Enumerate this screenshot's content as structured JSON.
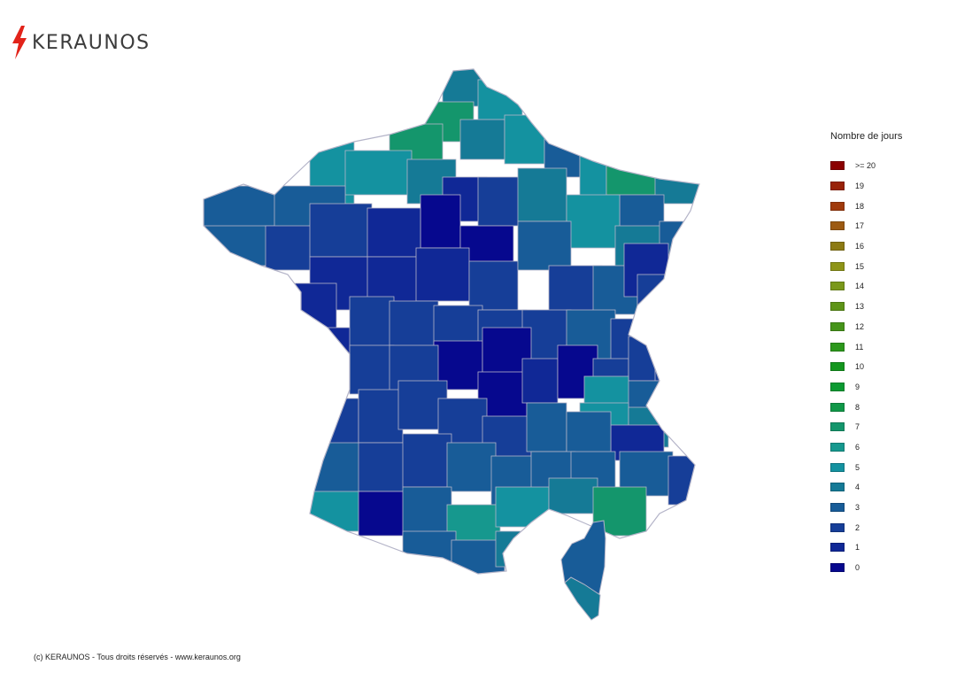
{
  "brand": {
    "name": "KERAUNOS",
    "logo_icon": "lightning-bolt-icon",
    "bolt_color": "#e2231a",
    "text_color": "#3c3c3c"
  },
  "legend": {
    "title": "Nombre de jours",
    "items": [
      {
        "label": ">= 20",
        "color": "#8b0000"
      },
      {
        "label": "19",
        "color": "#982208"
      },
      {
        "label": "18",
        "color": "#a03a0c"
      },
      {
        "label": "17",
        "color": "#9c5a12"
      },
      {
        "label": "16",
        "color": "#8c7a14"
      },
      {
        "label": "15",
        "color": "#8e9418"
      },
      {
        "label": "14",
        "color": "#7a981a"
      },
      {
        "label": "13",
        "color": "#5e9418"
      },
      {
        "label": "12",
        "color": "#46941a"
      },
      {
        "label": "11",
        "color": "#2c981c"
      },
      {
        "label": "10",
        "color": "#14961e"
      },
      {
        "label": "9",
        "color": "#0c9a32"
      },
      {
        "label": "8",
        "color": "#109848"
      },
      {
        "label": "7",
        "color": "#14966c"
      },
      {
        "label": "6",
        "color": "#16988e"
      },
      {
        "label": "5",
        "color": "#1492a0"
      },
      {
        "label": "4",
        "color": "#157a96"
      },
      {
        "label": "3",
        "color": "#185c98"
      },
      {
        "label": "2",
        "color": "#163e98"
      },
      {
        "label": "1",
        "color": "#102896"
      },
      {
        "label": "0",
        "color": "#06088e"
      }
    ]
  },
  "map": {
    "border_color": "#b4b4c8"
  },
  "footer": {
    "copyright": "(c) KERAUNOS - Tous droits réservés - www.keraunos.org"
  }
}
